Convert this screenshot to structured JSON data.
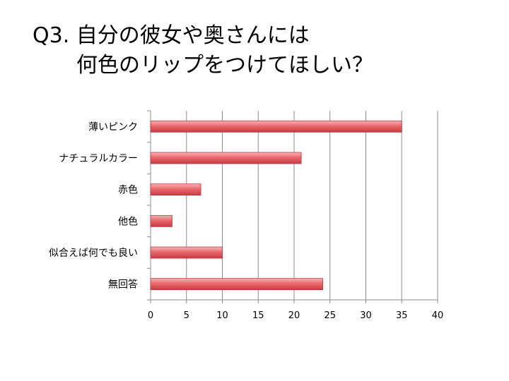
{
  "slide": {
    "title_line1": "Q3. 自分の彼女や奥さんには",
    "title_line2": "何色のリップをつけてほしい？"
  },
  "chart_data": {
    "type": "bar",
    "orientation": "horizontal",
    "categories": [
      "薄いピンク",
      "ナチュラルカラー",
      "赤色",
      "他色",
      "似合えば何でも良い",
      "無回答"
    ],
    "values": [
      35,
      21,
      7,
      3,
      10,
      24
    ],
    "xlim": [
      0,
      40
    ],
    "x_ticks": [
      0,
      5,
      10,
      15,
      20,
      25,
      30,
      35,
      40
    ],
    "grid": true,
    "legend": "none",
    "bar_color": "#e05a5f"
  }
}
